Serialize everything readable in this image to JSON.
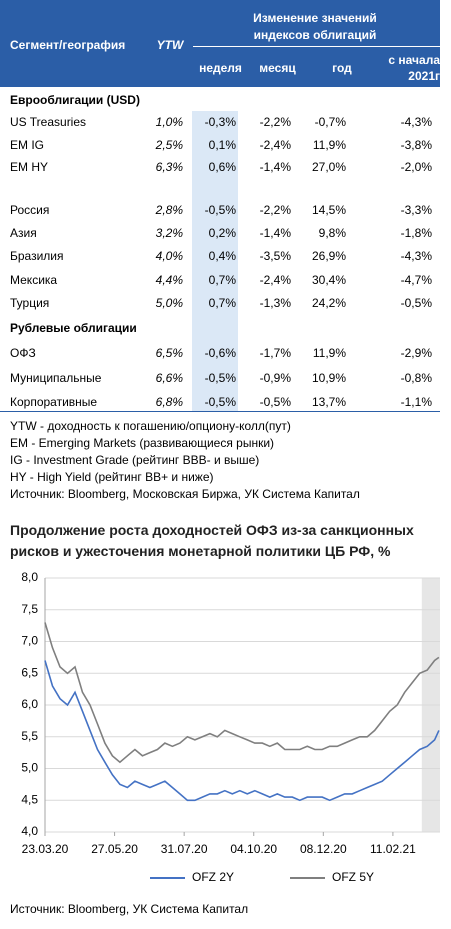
{
  "table": {
    "header": {
      "segment": "Сегмент/география",
      "ytw": "YTW",
      "change": "Изменение значений индексов облигаций",
      "periods": [
        "неделя",
        "месяц",
        "год",
        "с начала 2021г"
      ]
    },
    "sections": [
      {
        "title": "Еврооблигации (USD)",
        "rows": [
          [
            "US Treasuries",
            "1,0%",
            "-0,3%",
            "-2,2%",
            "-0,7%",
            "-4,3%"
          ],
          [
            "EM IG",
            "2,5%",
            "0,1%",
            "-2,4%",
            "11,9%",
            "-3,8%"
          ],
          [
            "EM HY",
            "6,3%",
            "0,6%",
            "-1,4%",
            "27,0%",
            "-2,0%"
          ]
        ]
      },
      {
        "rows": [
          [
            "Россия",
            "2,8%",
            "-0,5%",
            "-2,2%",
            "14,5%",
            "-3,3%"
          ],
          [
            "Азия",
            "3,2%",
            "0,2%",
            "-1,4%",
            "9,8%",
            "-1,8%"
          ],
          [
            "Бразилия",
            "4,0%",
            "0,4%",
            "-3,5%",
            "26,9%",
            "-4,3%"
          ],
          [
            "Мексика",
            "4,4%",
            "0,7%",
            "-2,4%",
            "30,4%",
            "-4,7%"
          ],
          [
            "Турция",
            "5,0%",
            "0,7%",
            "-1,3%",
            "24,2%",
            "-0,5%"
          ]
        ]
      },
      {
        "title": "Рублевые облигации",
        "rows": [
          [
            "ОФЗ",
            "6,5%",
            "-0,6%",
            "-1,7%",
            "11,9%",
            "-2,9%"
          ],
          [
            "Муниципальные",
            "6,6%",
            "-0,5%",
            "-0,9%",
            "10,9%",
            "-0,8%"
          ],
          [
            "Корпоративные",
            "6,8%",
            "-0,5%",
            "-0,5%",
            "13,7%",
            "-1,1%"
          ]
        ]
      }
    ]
  },
  "notes": [
    "YTW - доходность к погашению/опциону-колл(пут)",
    "EM - Emerging Markets (развивающиеся рынки)",
    "IG - Investment Grade (рейтинг BBB- и выше)",
    "HY - High Yield (рейтинг BB+ и ниже)",
    "Источник: Bloomberg, Московская Биржа, УК Система Капитал"
  ],
  "chart_data": {
    "type": "line",
    "title": "Продолжение роста доходностей ОФЗ из-за санкционных рисков и ужесточения монетарной политики ЦБ РФ, %",
    "source": "Источник: Bloomberg, УК Система Капитал",
    "x": [
      "23.03.20",
      "30.03.20",
      "06.04.20",
      "13.04.20",
      "20.04.20",
      "27.04.20",
      "04.05.20",
      "11.05.20",
      "18.05.20",
      "25.05.20",
      "01.06.20",
      "08.06.20",
      "15.06.20",
      "22.06.20",
      "29.06.20",
      "06.07.20",
      "13.07.20",
      "20.07.20",
      "27.07.20",
      "03.08.20",
      "10.08.20",
      "17.08.20",
      "24.08.20",
      "31.08.20",
      "07.09.20",
      "14.09.20",
      "21.09.20",
      "28.09.20",
      "05.10.20",
      "12.10.20",
      "19.10.20",
      "26.10.20",
      "02.11.20",
      "09.11.20",
      "16.11.20",
      "23.11.20",
      "30.11.20",
      "07.12.20",
      "14.12.20",
      "21.12.20",
      "28.12.20",
      "04.01.21",
      "11.01.21",
      "18.01.21",
      "25.01.21",
      "01.02.21",
      "08.02.21",
      "15.02.21",
      "22.02.21",
      "01.03.21",
      "08.03.21",
      "15.03.21",
      "22.03.21",
      "26.03.21"
    ],
    "xlim": [
      "23.03.20",
      "27.03.21"
    ],
    "xticks": [
      "23.03.20",
      "27.05.20",
      "31.07.20",
      "04.10.20",
      "08.12.20",
      "11.02.21"
    ],
    "shaded_x": [
      "10.03.21",
      "27.03.21"
    ],
    "ylim": [
      4,
      8
    ],
    "yticks": [
      {
        "value": 4,
        "label": "4,0"
      },
      {
        "value": 4.5,
        "label": "4,5"
      },
      {
        "value": 5,
        "label": "5,0"
      },
      {
        "value": 5.5,
        "label": "5,5"
      },
      {
        "value": 6,
        "label": "6,0"
      },
      {
        "value": 6.5,
        "label": "6,5"
      },
      {
        "value": 7,
        "label": "7,0"
      },
      {
        "value": 7.5,
        "label": "7,5"
      },
      {
        "value": 8,
        "label": "8,0"
      }
    ],
    "grid": true,
    "series": [
      {
        "name": "OFZ 2Y",
        "color": "#4472c4",
        "values": [
          6.7,
          6.3,
          6.1,
          6.0,
          6.2,
          5.9,
          5.6,
          5.3,
          5.1,
          4.9,
          4.75,
          4.7,
          4.8,
          4.75,
          4.7,
          4.75,
          4.8,
          4.7,
          4.6,
          4.5,
          4.5,
          4.55,
          4.6,
          4.6,
          4.65,
          4.6,
          4.65,
          4.6,
          4.65,
          4.6,
          4.55,
          4.6,
          4.55,
          4.55,
          4.5,
          4.55,
          4.55,
          4.55,
          4.5,
          4.55,
          4.6,
          4.6,
          4.65,
          4.7,
          4.75,
          4.8,
          4.9,
          5.0,
          5.1,
          5.2,
          5.3,
          5.35,
          5.45,
          5.6
        ]
      },
      {
        "name": "OFZ 5Y",
        "color": "#7f7f7f",
        "values": [
          7.3,
          6.9,
          6.6,
          6.5,
          6.6,
          6.2,
          6.0,
          5.7,
          5.4,
          5.2,
          5.1,
          5.2,
          5.3,
          5.2,
          5.25,
          5.3,
          5.4,
          5.35,
          5.4,
          5.5,
          5.45,
          5.5,
          5.55,
          5.5,
          5.6,
          5.55,
          5.5,
          5.45,
          5.4,
          5.4,
          5.35,
          5.4,
          5.3,
          5.3,
          5.3,
          5.35,
          5.3,
          5.3,
          5.35,
          5.35,
          5.4,
          5.45,
          5.5,
          5.5,
          5.6,
          5.75,
          5.9,
          6.0,
          6.2,
          6.35,
          6.5,
          6.55,
          6.7,
          6.75
        ]
      }
    ]
  }
}
